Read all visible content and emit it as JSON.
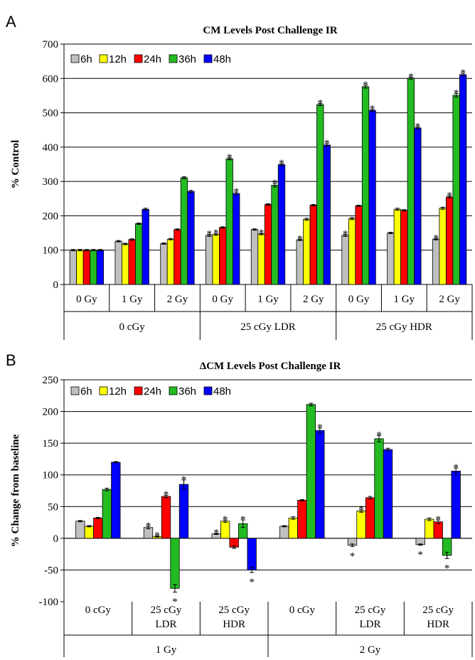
{
  "chart_data": [
    {
      "panel": "A",
      "type": "bar",
      "title": "CM Levels Post Challenge IR",
      "ylabel": "% Control",
      "ylim": [
        0,
        700
      ],
      "yticks": [
        "0",
        "100",
        "200",
        "300",
        "400",
        "500",
        "600",
        "700"
      ],
      "categories": [
        "0 Gy",
        "1 Gy",
        "2 Gy",
        "0 Gy",
        "1 Gy",
        "2 Gy",
        "0 Gy",
        "1 Gy",
        "2 Gy"
      ],
      "groups": [
        {
          "label": "0 cGy"
        },
        {
          "label": "25 cGy LDR"
        },
        {
          "label": "25 cGy HDR"
        }
      ],
      "legend": [
        "6h",
        "12h",
        "24h",
        "36h",
        "48h"
      ],
      "colors": [
        "#c0c0c0",
        "#ffff00",
        "#ff0000",
        "#22bb22",
        "#0000ff"
      ],
      "series": [
        {
          "name": "6h",
          "values": [
            100,
            126,
            119,
            143,
            160,
            130,
            143,
            150,
            132
          ],
          "errors": [
            2,
            2,
            2,
            3,
            2,
            2,
            3,
            2,
            2
          ],
          "sig": [
            false,
            false,
            false,
            true,
            false,
            true,
            true,
            false,
            true
          ]
        },
        {
          "name": "12h",
          "values": [
            100,
            118,
            132,
            146,
            147,
            190,
            192,
            219,
            222
          ],
          "errors": [
            2,
            2,
            2,
            3,
            2,
            3,
            3,
            3,
            3
          ],
          "sig": [
            false,
            false,
            false,
            true,
            true,
            false,
            false,
            false,
            false
          ]
        },
        {
          "name": "24h",
          "values": [
            100,
            131,
            160,
            166,
            233,
            231,
            229,
            216,
            255
          ],
          "errors": [
            2,
            2,
            2,
            2,
            2,
            2,
            2,
            2,
            3
          ],
          "sig": [
            false,
            false,
            false,
            false,
            false,
            false,
            false,
            false,
            true
          ]
        },
        {
          "name": "36h",
          "values": [
            100,
            177,
            311,
            366,
            289,
            524,
            576,
            601,
            551
          ],
          "errors": [
            2,
            2,
            3,
            3,
            5,
            3,
            4,
            3,
            5
          ],
          "sig": [
            false,
            false,
            false,
            true,
            true,
            true,
            true,
            true,
            true
          ]
        },
        {
          "name": "48h",
          "values": [
            100,
            219,
            271,
            265,
            349,
            406,
            507,
            456,
            611
          ],
          "errors": [
            2,
            3,
            3,
            4,
            3,
            4,
            3,
            3,
            4
          ],
          "sig": [
            false,
            false,
            false,
            true,
            true,
            true,
            true,
            true,
            true
          ]
        }
      ]
    },
    {
      "panel": "B",
      "type": "bar",
      "title": "ΔCM Levels Post Challenge IR",
      "ylabel": "% Change from baseline",
      "ylim": [
        -100,
        250
      ],
      "yticks": [
        "-100",
        "-50",
        "0",
        "50",
        "100",
        "150",
        "200",
        "250"
      ],
      "categories": [
        [
          "0 cGy"
        ],
        [
          "25 cGy",
          "LDR"
        ],
        [
          "25 cGy",
          "HDR"
        ],
        [
          "0 cGy"
        ],
        [
          "25 cGy",
          "LDR"
        ],
        [
          "25 cGy",
          "HDR"
        ]
      ],
      "groups": [
        {
          "label": "1 Gy"
        },
        {
          "label": "2 Gy"
        }
      ],
      "legend": [
        "6h",
        "12h",
        "24h",
        "36h",
        "48h"
      ],
      "colors": [
        "#c0c0c0",
        "#ffff00",
        "#ff0000",
        "#22bb22",
        "#0000ff"
      ],
      "series": [
        {
          "name": "6h",
          "values": [
            27,
            17,
            7,
            19,
            -11,
            -10
          ],
          "errors": [
            1,
            2,
            1,
            1,
            2,
            1
          ],
          "sig": [
            false,
            true,
            true,
            false,
            true,
            true
          ]
        },
        {
          "name": "12h",
          "values": [
            19,
            3,
            27,
            32,
            43,
            30
          ],
          "errors": [
            1,
            1,
            2,
            2,
            2,
            2
          ],
          "sig": [
            false,
            true,
            true,
            false,
            true,
            false
          ]
        },
        {
          "name": "24h",
          "values": [
            32,
            66,
            -14,
            60,
            64,
            26
          ],
          "errors": [
            1,
            2,
            2,
            1,
            2,
            3
          ],
          "sig": [
            false,
            true,
            false,
            false,
            false,
            true
          ]
        },
        {
          "name": "36h",
          "values": [
            77,
            -79,
            23,
            211,
            157,
            -27
          ],
          "errors": [
            2,
            6,
            6,
            2,
            5,
            5
          ],
          "sig": [
            false,
            true,
            true,
            false,
            true,
            true
          ]
        },
        {
          "name": "48h",
          "values": [
            120,
            85,
            -50,
            170,
            140,
            106
          ],
          "errors": [
            1,
            7,
            4,
            4,
            2,
            5
          ],
          "sig": [
            false,
            true,
            true,
            true,
            false,
            true
          ]
        }
      ]
    }
  ],
  "panels": {
    "a_letter": "A",
    "b_letter": "B"
  }
}
